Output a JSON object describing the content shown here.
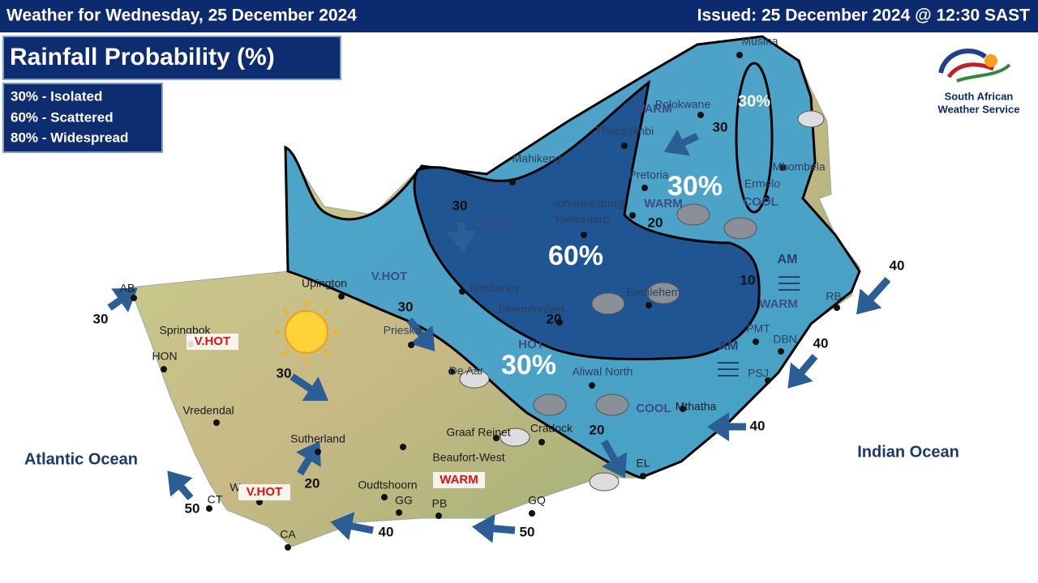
{
  "header": {
    "left": "Weather  for Wednesday, 25 December 2024",
    "right": "Issued: 25 December 2024  @ 12:30 SAST"
  },
  "title": "Rainfall  Probability (%)",
  "legend": [
    "30% - Isolated",
    "60% - Scattered",
    "80% - Widespread"
  ],
  "logo": [
    "South African",
    "Weather Service"
  ],
  "oceans": [
    "Atlantic Ocean",
    "Indian Ocean"
  ],
  "rain_probability": [
    "60%",
    "30%",
    "30%",
    "30%"
  ],
  "places": [
    "Musina",
    "Polokwane",
    "Thabazimbi",
    "Mahikeng",
    "Pretoria",
    "Johannesburg",
    "Klerksdorp",
    "Ermelo",
    "Mbombela",
    "Upington",
    "Kimberley",
    "Bloemfontein",
    "Bethlehem",
    "Prieska",
    "Aliwal North",
    "De Aar",
    "Cradock",
    "Mthatha",
    "Springbok",
    "HON",
    "Vredendal",
    "Sutherland",
    "Graaf Reinet",
    "Beaufort-West",
    "Oudtshoorn",
    "GG",
    "PB",
    "GQ",
    "CT",
    "W",
    "CA",
    "PMT",
    "DBN",
    "PSJ",
    "RB",
    "EL",
    "AB"
  ],
  "temperature_labels": [
    "WARM",
    "WARM",
    "COOL",
    "V.HOT",
    "V.HOT",
    "HOT",
    "WARM",
    "COOL",
    "V.HOT",
    "V.HOT",
    "WARM"
  ],
  "wind_speeds": [
    30,
    30,
    30,
    30,
    30,
    20,
    20,
    20,
    20,
    10,
    40,
    40,
    40,
    40,
    50,
    50
  ],
  "time_labels": [
    "AM",
    "AM"
  ]
}
